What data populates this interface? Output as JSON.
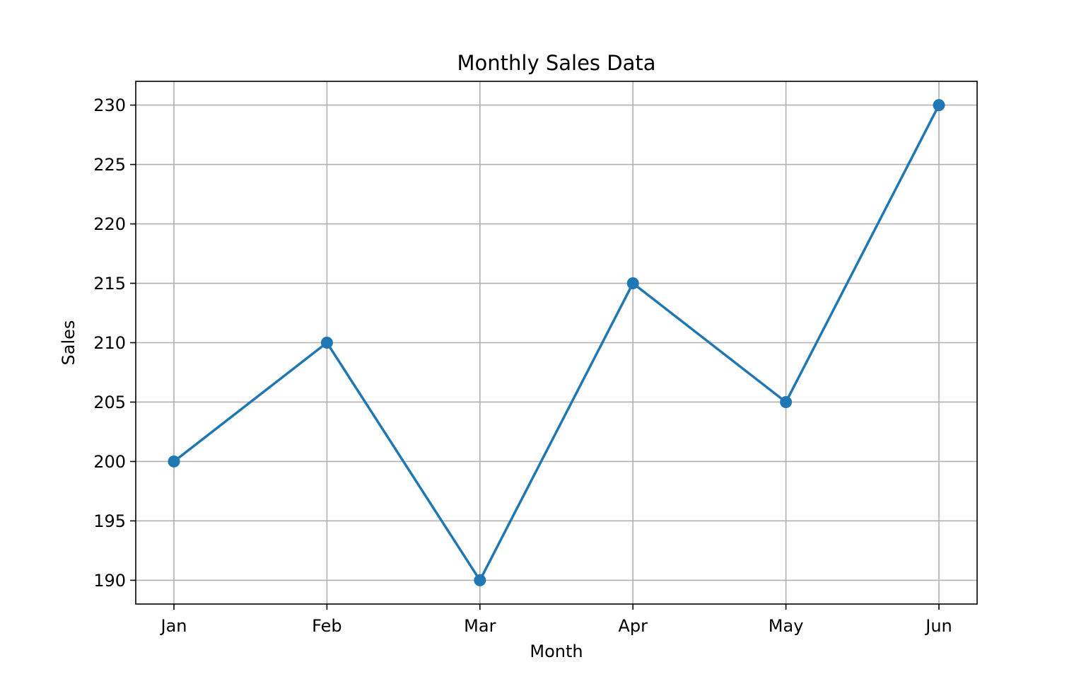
{
  "chart_data": {
    "type": "line",
    "title": "Monthly Sales Data",
    "xlabel": "Month",
    "ylabel": "Sales",
    "categories": [
      "Jan",
      "Feb",
      "Mar",
      "Apr",
      "May",
      "Jun"
    ],
    "series": [
      {
        "values": [
          200,
          210,
          190,
          215,
          205,
          230
        ],
        "color": "#1f77b4",
        "marker": "circle"
      }
    ],
    "ylim": [
      188,
      232
    ],
    "yticks": [
      190,
      195,
      200,
      205,
      210,
      215,
      220,
      225,
      230
    ],
    "grid": true,
    "legend": "none"
  }
}
